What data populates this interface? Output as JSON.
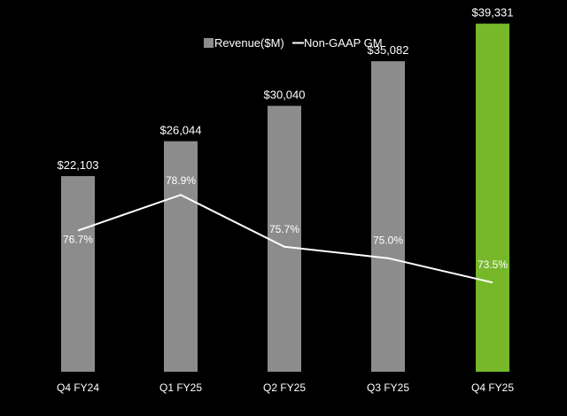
{
  "chart_data": {
    "type": "bar",
    "categories": [
      "Q4 FY24",
      "Q1 FY25",
      "Q2 FY25",
      "Q3 FY25",
      "Q4 FY25"
    ],
    "series": [
      {
        "name": "Revenue($M)",
        "kind": "bar",
        "values": [
          22103,
          26044,
          30040,
          35082,
          39331
        ],
        "labels": [
          "$22,103",
          "$26,044",
          "$30,040",
          "$35,082",
          "$39,331"
        ]
      },
      {
        "name": "Non-GAAP GM",
        "kind": "line",
        "values": [
          76.7,
          78.9,
          75.7,
          75.0,
          73.5
        ],
        "labels": [
          "76.7%",
          "78.9%",
          "75.7%",
          "75.0%",
          "73.5%"
        ]
      }
    ],
    "ylim_bar": [
      0,
      42000
    ],
    "ylim_line": [
      68,
      80
    ],
    "legend_position": "top-center",
    "grid": false,
    "colors": {
      "background": "#000000",
      "bar": "#8c8c8c",
      "highlight_bar": "#76b82a",
      "line": "#ffffff",
      "text": "#ffffff"
    },
    "highlight_index": 4
  }
}
